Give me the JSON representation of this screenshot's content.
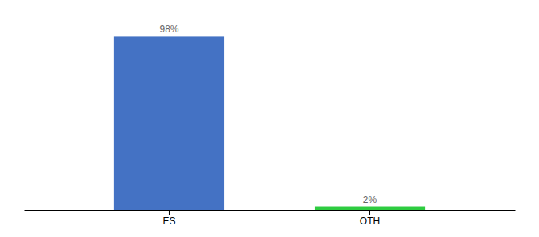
{
  "chart_data": {
    "type": "bar",
    "categories": [
      "ES",
      "OTH"
    ],
    "values": [
      98,
      2
    ],
    "value_labels": [
      "98%",
      "2%"
    ],
    "colors": [
      "#4472c4",
      "#2ecc40"
    ],
    "ylim": [
      0,
      108
    ],
    "tick_labels": "x",
    "data_labels": true
  }
}
